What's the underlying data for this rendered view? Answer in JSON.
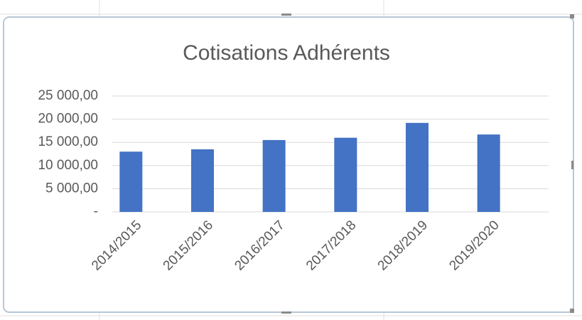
{
  "chart_data": {
    "type": "bar",
    "title": "Cotisations Adhérents",
    "categories": [
      "2014/2015",
      "2015/2016",
      "2016/2017",
      "2017/2018",
      "2018/2019",
      "2019/2020"
    ],
    "values": [
      13000,
      13500,
      15500,
      16000,
      19200,
      16700
    ],
    "color": "#4472c4",
    "ylim": [
      0,
      25000
    ],
    "yticks": [
      {
        "value": 0,
        "label": "-"
      },
      {
        "value": 5000,
        "label": "5 000,00"
      },
      {
        "value": 10000,
        "label": "10 000,00"
      },
      {
        "value": 15000,
        "label": "15 000,00"
      },
      {
        "value": 20000,
        "label": "20 000,00"
      },
      {
        "value": 25000,
        "label": "25 000,00"
      }
    ],
    "grid": true
  }
}
